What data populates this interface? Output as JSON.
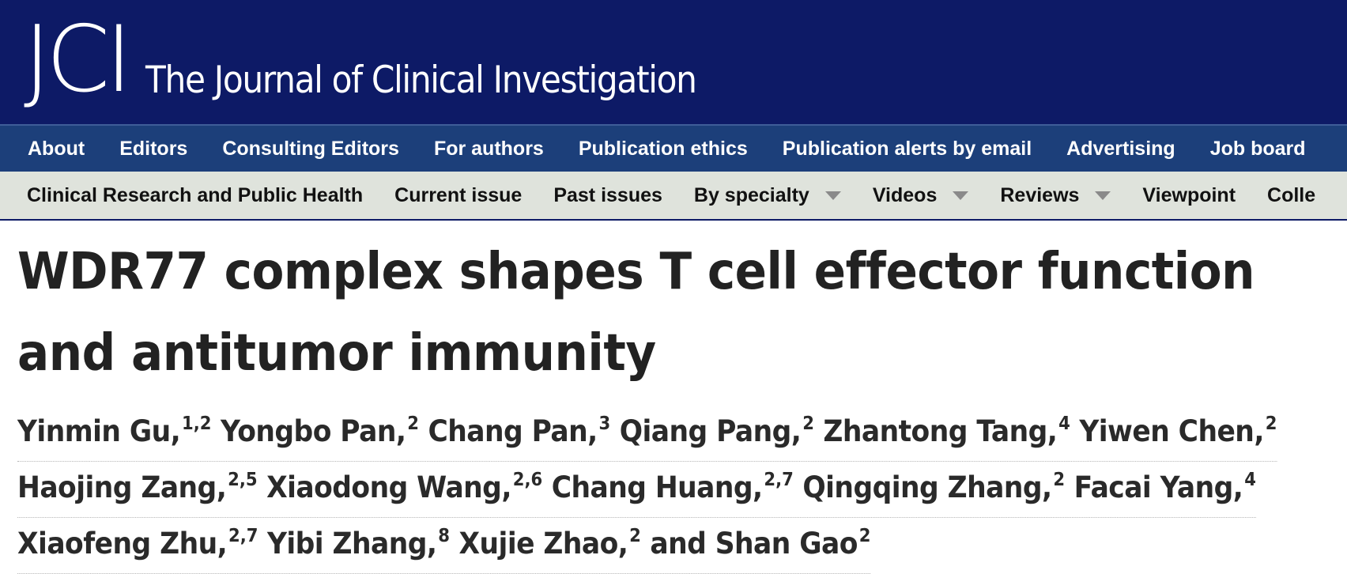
{
  "masthead": {
    "logo_text": "JCI",
    "journal_name": "The Journal of Clinical Investigation"
  },
  "nav": {
    "items": [
      {
        "label": "About"
      },
      {
        "label": "Editors"
      },
      {
        "label": "Consulting Editors"
      },
      {
        "label": "For authors"
      },
      {
        "label": "Publication ethics"
      },
      {
        "label": "Publication alerts by email"
      },
      {
        "label": "Advertising"
      },
      {
        "label": "Job board"
      }
    ]
  },
  "subnav": {
    "items": [
      {
        "label": "Clinical Research and Public Health",
        "dropdown": false
      },
      {
        "label": "Current issue",
        "dropdown": false
      },
      {
        "label": "Past issues",
        "dropdown": false
      },
      {
        "label": "By specialty",
        "dropdown": true
      },
      {
        "label": "Videos",
        "dropdown": true
      },
      {
        "label": "Reviews",
        "dropdown": true
      },
      {
        "label": "Viewpoint",
        "dropdown": false
      },
      {
        "label": "Colle",
        "dropdown": false
      }
    ]
  },
  "article": {
    "title": "WDR77 complex shapes T cell effector function and antitumor immunity",
    "author_lines": [
      [
        {
          "name": "Yinmin Gu,",
          "aff": "1,2"
        },
        {
          "name": "Yongbo Pan,",
          "aff": "2"
        },
        {
          "name": "Chang Pan,",
          "aff": "3"
        },
        {
          "name": "Qiang Pang,",
          "aff": "2"
        },
        {
          "name": "Zhantong Tang,",
          "aff": "4"
        },
        {
          "name": "Yiwen Chen,",
          "aff": "2"
        }
      ],
      [
        {
          "name": "Haojing Zang,",
          "aff": "2,5"
        },
        {
          "name": "Xiaodong Wang,",
          "aff": "2,6"
        },
        {
          "name": "Chang Huang,",
          "aff": "2,7"
        },
        {
          "name": "Qingqing Zhang,",
          "aff": "2"
        },
        {
          "name": "Facai Yang,",
          "aff": "4"
        }
      ],
      [
        {
          "name": "Xiaofeng Zhu,",
          "aff": "2,7"
        },
        {
          "name": "Yibi Zhang,",
          "aff": "8"
        },
        {
          "name": "Xujie Zhao,",
          "aff": "2"
        },
        {
          "name": "and Shan Gao",
          "aff": "2"
        }
      ]
    ]
  },
  "colors": {
    "masthead_bg": "#0d1a66",
    "nav_bg": "#1c3f7a",
    "subnav_bg": "#dfe3dc",
    "title_text": "#222222"
  }
}
